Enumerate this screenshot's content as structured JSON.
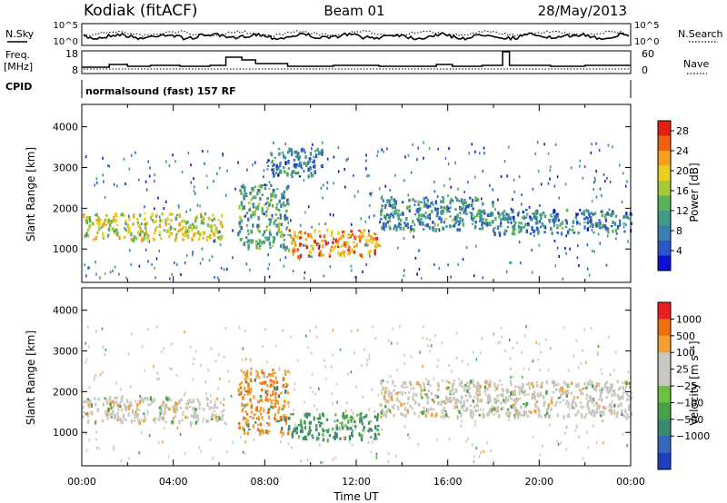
{
  "header": {
    "station": "Kodiak (fitACF)",
    "beam": "Beam 01",
    "date": "28/May/2013"
  },
  "strips": {
    "nsky_label": "N.Sky",
    "nsearch_label": "N.Search",
    "freq_label": "Freq.",
    "freq_unit": "[MHz]",
    "nave_label": "Nave",
    "cpid_label": "CPID",
    "cpid_text": "normalsound (fast) 157 RF",
    "noise_ticks_left": [
      "10^5",
      "10^0"
    ],
    "noise_ticks_right": [
      "10^5",
      "10^0"
    ],
    "freq_ticks": [
      "18",
      "8"
    ],
    "nave_ticks": [
      "60",
      "0"
    ]
  },
  "chart_data": [
    {
      "type": "heatmap",
      "panel": "power",
      "xlabel": "Time UT",
      "ylabel": "Slant Range [km]",
      "xlim": [
        0,
        24
      ],
      "ylim": [
        180,
        4550
      ],
      "yticks": [
        "1000",
        "2000",
        "3000",
        "4000"
      ],
      "colorbar_label": "Power [dB]",
      "colorbar_ticks": [
        "4",
        "8",
        "12",
        "16",
        "20",
        "24",
        "28"
      ],
      "colorbar_range": [
        0,
        30
      ],
      "colors": [
        "#1010d0",
        "#2a56c8",
        "#3a7fb0",
        "#3f9a86",
        "#5ab35a",
        "#a6c83a",
        "#e8d020",
        "#f2a020",
        "#f06010",
        "#e02010"
      ],
      "echo_regions": [
        {
          "t0": 0.0,
          "t1": 6.2,
          "r0": 1250,
          "r1": 1900,
          "level": 16
        },
        {
          "t0": 6.8,
          "t1": 9.0,
          "r0": 1000,
          "r1": 2600,
          "level": 10
        },
        {
          "t0": 9.0,
          "t1": 13.0,
          "r0": 850,
          "r1": 1500,
          "level": 22
        },
        {
          "t0": 13.0,
          "t1": 18.0,
          "r0": 1500,
          "r1": 2300,
          "level": 8
        },
        {
          "t0": 18.0,
          "t1": 24.0,
          "r0": 1400,
          "r1": 2000,
          "level": 7
        },
        {
          "t0": 8.0,
          "t1": 10.5,
          "r0": 2800,
          "r1": 3500,
          "level": 6
        }
      ]
    },
    {
      "type": "heatmap",
      "panel": "velocity",
      "xlabel": "Time UT",
      "ylabel": "Slant Range [km]",
      "xlim": [
        0,
        24
      ],
      "ylim": [
        180,
        4550
      ],
      "yticks": [
        "1000",
        "2000",
        "3000",
        "4000"
      ],
      "xticks": [
        "00:00",
        "04:00",
        "08:00",
        "12:00",
        "16:00",
        "20:00",
        "00:00"
      ],
      "colorbar_label": "Velocity [m s⁻¹]",
      "colorbar_ticks": [
        "1000",
        "500",
        "100",
        "25",
        "−25",
        "−100",
        "−500",
        "−1000"
      ],
      "colors": [
        "#2040c0",
        "#3468b8",
        "#3a8a70",
        "#48a048",
        "#6cc040",
        "#c8c8c0",
        "#c8c8c0",
        "#f0a030",
        "#f07010",
        "#e82020"
      ],
      "echo_regions": [
        {
          "t0": 0.0,
          "t1": 6.2,
          "r0": 1250,
          "r1": 1900,
          "class": "ground"
        },
        {
          "t0": 6.8,
          "t1": 9.0,
          "r0": 1000,
          "r1": 2600,
          "class": "negative"
        },
        {
          "t0": 9.0,
          "t1": 13.0,
          "r0": 850,
          "r1": 1500,
          "class": "positive"
        },
        {
          "t0": 13.0,
          "t1": 24.0,
          "r0": 1400,
          "r1": 2300,
          "class": "ground"
        }
      ]
    }
  ]
}
